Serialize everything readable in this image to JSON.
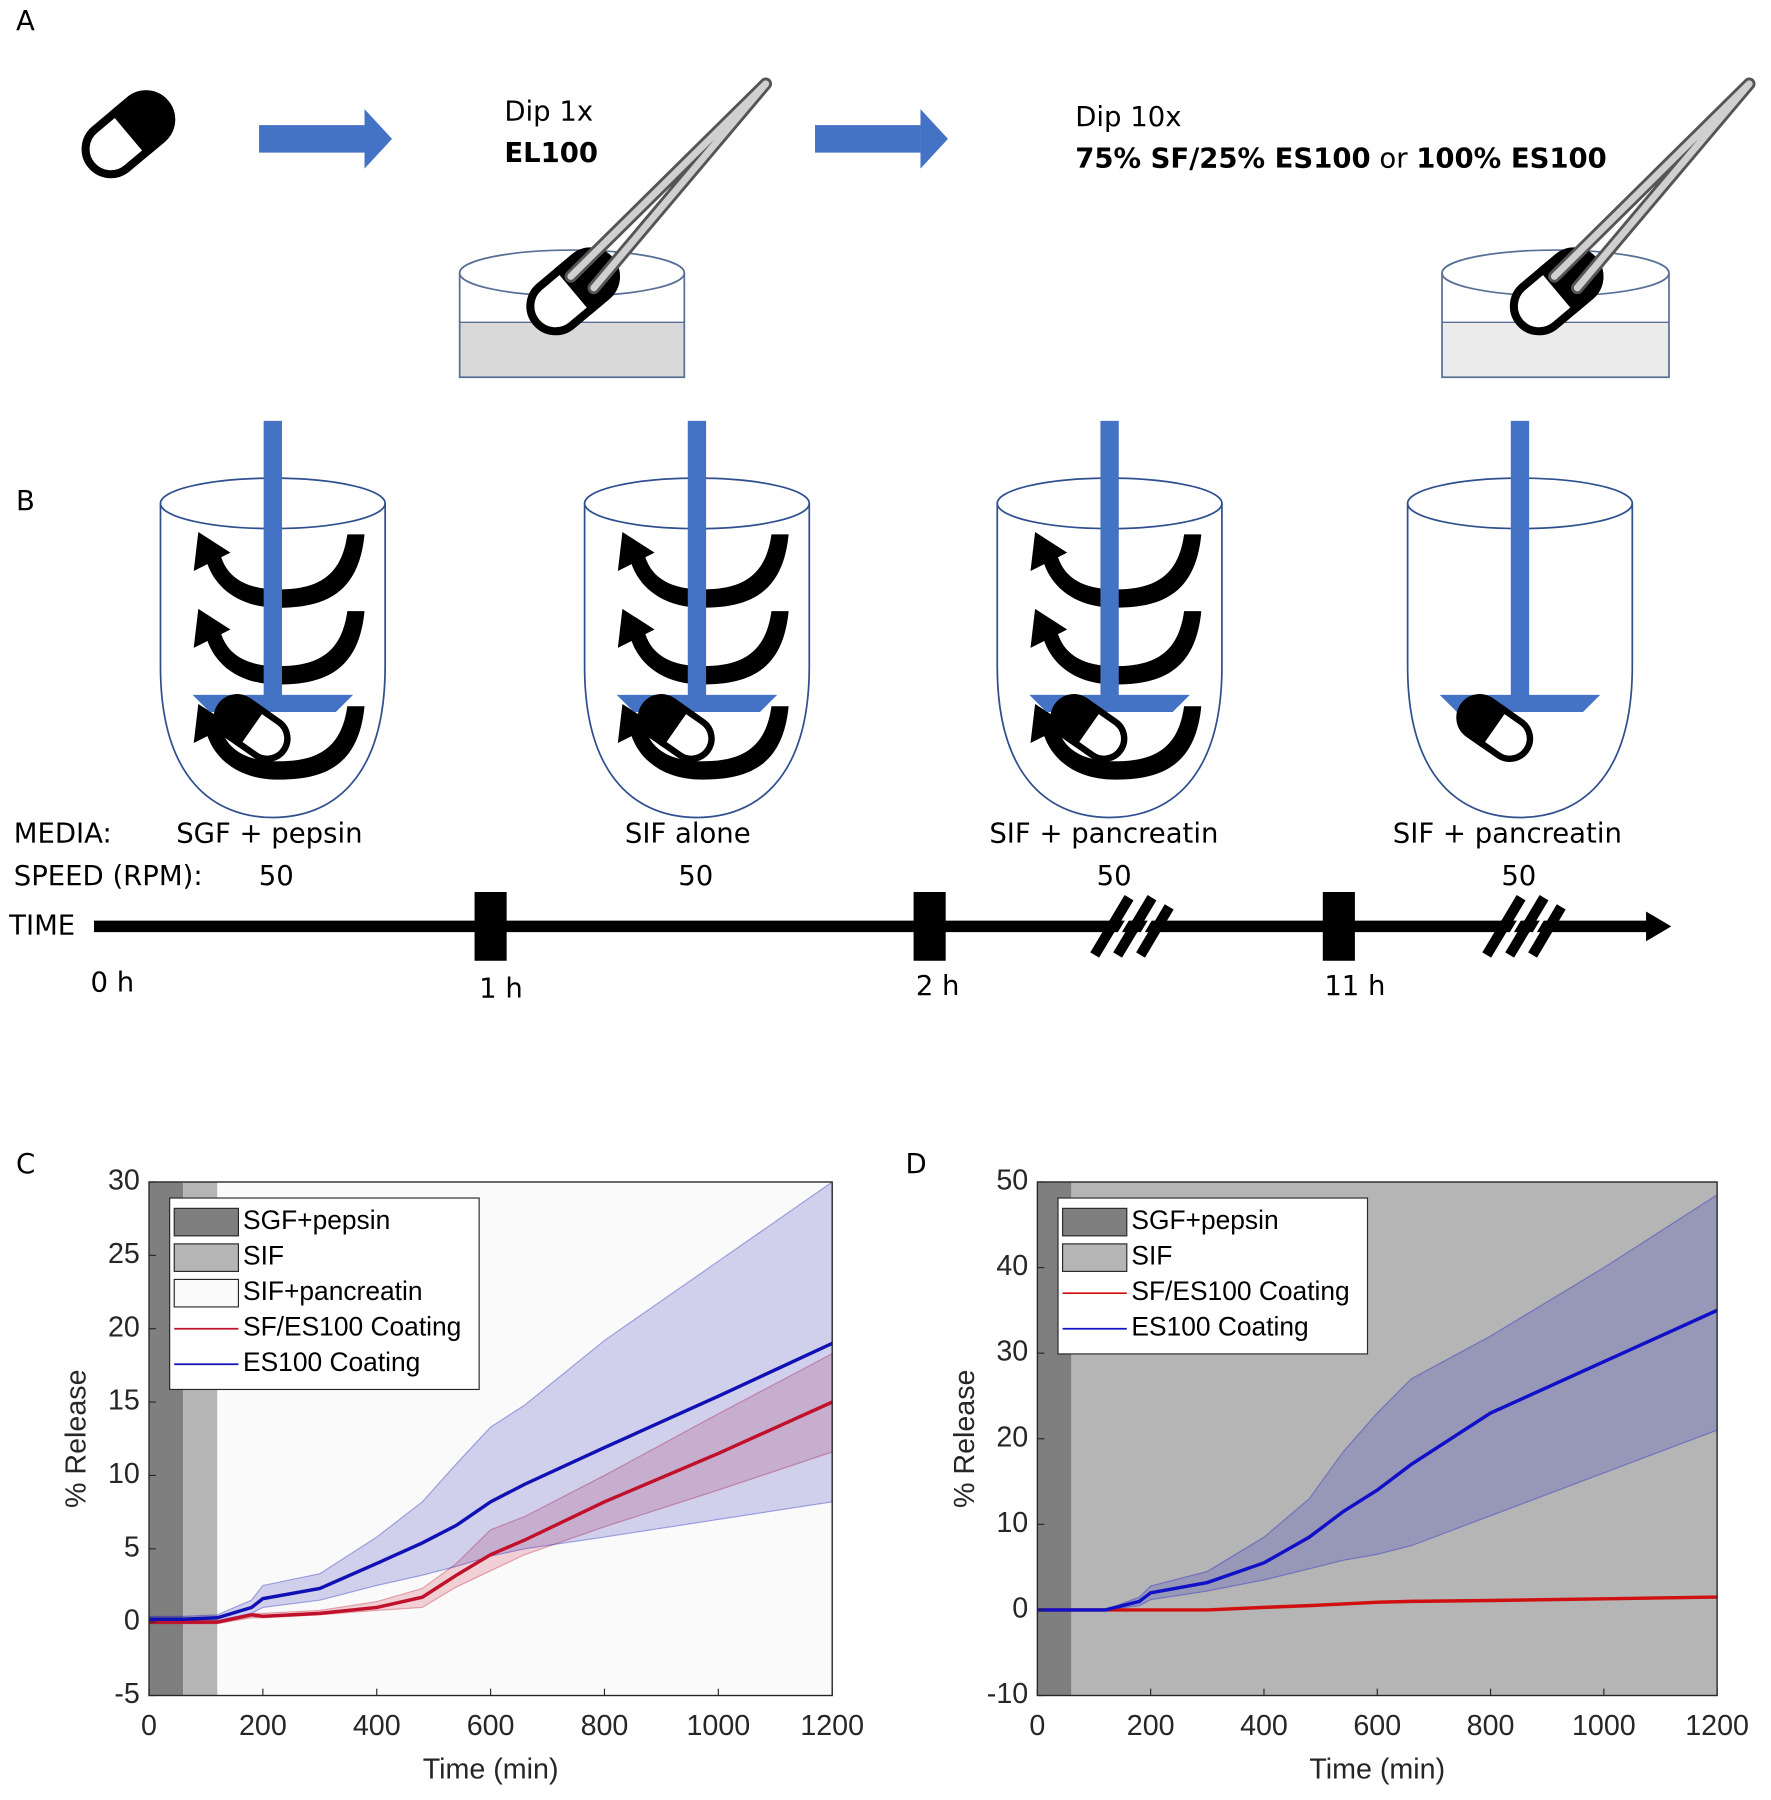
{
  "panel_labels": [
    "A",
    "B",
    "C",
    "D"
  ],
  "panel_a": {
    "step1": {
      "action": "Dip 1x",
      "material": "EL100"
    },
    "step2": {
      "action": "Dip 10x",
      "material": [
        "75% SF/25% ES100",
        "or",
        "100% ES100"
      ]
    }
  },
  "panel_b": {
    "media_label": "MEDIA:",
    "speed_label": "SPEED (RPM):",
    "time_label": "TIME",
    "media": [
      "SGF + pepsin",
      "SIF alone",
      "SIF + pancreatin",
      "SIF + pancreatin"
    ],
    "speeds": [
      "50",
      "50",
      "50",
      "50"
    ],
    "times": [
      "0 h",
      "1 h",
      "2 h",
      "11 h"
    ]
  },
  "chart_data": [
    {
      "type": "line",
      "xlabel": "Time (min)",
      "ylabel": "% Release",
      "xlim": [
        0,
        1200
      ],
      "ylim": [
        -5,
        30
      ],
      "xticks": [
        0,
        200,
        400,
        600,
        800,
        1000,
        1200
      ],
      "yticks": [
        -5,
        0,
        5,
        10,
        15,
        20,
        25,
        30
      ],
      "legend": "upper left",
      "regions": [
        {
          "name": "SGF+pepsin",
          "color": "#7f7f7f",
          "x": [
            0,
            60
          ]
        },
        {
          "name": "SIF",
          "color": "#b5b5b5",
          "x": [
            60,
            120
          ]
        },
        {
          "name": "SIF+pancreatin",
          "color": "#fafafa",
          "x": [
            120,
            1200
          ]
        }
      ],
      "x": [
        0,
        60,
        120,
        180,
        200,
        300,
        400,
        480,
        540,
        600,
        660,
        800,
        1000,
        1200
      ],
      "series": [
        {
          "name": "SF/ES100 Coating",
          "color": "#c0102a",
          "values": [
            0,
            0,
            0,
            0.5,
            0.4,
            0.6,
            1.0,
            1.7,
            3.2,
            4.6,
            5.6,
            8.2,
            11.5,
            15.0
          ],
          "lower": [
            -0.1,
            -0.1,
            -0.1,
            0.3,
            0.3,
            0.5,
            0.8,
            1.0,
            2.4,
            3.5,
            4.6,
            6.5,
            9.0,
            11.6
          ],
          "upper": [
            0.1,
            0.1,
            0.1,
            0.6,
            0.6,
            0.8,
            1.4,
            2.3,
            4.0,
            6.3,
            7.2,
            10.0,
            14.2,
            18.3
          ]
        },
        {
          "name": "ES100 Coating",
          "color": "#1010b4",
          "values": [
            0.2,
            0.2,
            0.3,
            1.0,
            1.6,
            2.3,
            4.0,
            5.4,
            6.6,
            8.2,
            9.4,
            11.9,
            15.4,
            19.0
          ],
          "lower": [
            0,
            0,
            0.1,
            0.6,
            1.0,
            1.5,
            2.5,
            3.2,
            3.8,
            4.5,
            5.0,
            5.8,
            7.0,
            8.2
          ],
          "upper": [
            0.4,
            0.4,
            0.5,
            1.5,
            2.5,
            3.3,
            5.8,
            8.2,
            10.8,
            13.3,
            14.8,
            19.2,
            24.6,
            30.0
          ]
        }
      ]
    },
    {
      "type": "line",
      "xlabel": "Time (min)",
      "ylabel": "% Release",
      "xlim": [
        0,
        1200
      ],
      "ylim": [
        -10,
        50
      ],
      "xticks": [
        0,
        200,
        400,
        600,
        800,
        1000,
        1200
      ],
      "yticks": [
        -10,
        0,
        10,
        20,
        30,
        40,
        50
      ],
      "legend": "upper left",
      "regions": [
        {
          "name": "SGF+pepsin",
          "color": "#7f7f7f",
          "x": [
            0,
            60
          ]
        },
        {
          "name": "SIF",
          "color": "#b5b5b5",
          "x": [
            60,
            1200
          ]
        }
      ],
      "x": [
        0,
        60,
        120,
        180,
        200,
        300,
        400,
        480,
        540,
        600,
        660,
        800,
        1000,
        1200
      ],
      "series": [
        {
          "name": "SF/ES100 Coating",
          "color": "#d01010",
          "values": [
            0,
            0,
            0,
            0,
            0,
            0,
            0.3,
            0.5,
            0.7,
            0.9,
            1.0,
            1.1,
            1.3,
            1.5
          ]
        },
        {
          "name": "ES100 Coating",
          "color": "#1010c8",
          "values": [
            0,
            0,
            0,
            1.0,
            2.0,
            3.2,
            5.5,
            8.5,
            11.5,
            14.0,
            17.0,
            23.0,
            29.0,
            35.0
          ],
          "lower": [
            0,
            0,
            0,
            0.5,
            1.2,
            2.2,
            3.5,
            4.8,
            5.8,
            6.5,
            7.5,
            11.0,
            16.0,
            21.0
          ],
          "upper": [
            0,
            0,
            0,
            1.5,
            2.8,
            4.5,
            8.5,
            13.0,
            18.5,
            23.0,
            27.0,
            32.0,
            40.0,
            48.5
          ]
        }
      ]
    }
  ]
}
